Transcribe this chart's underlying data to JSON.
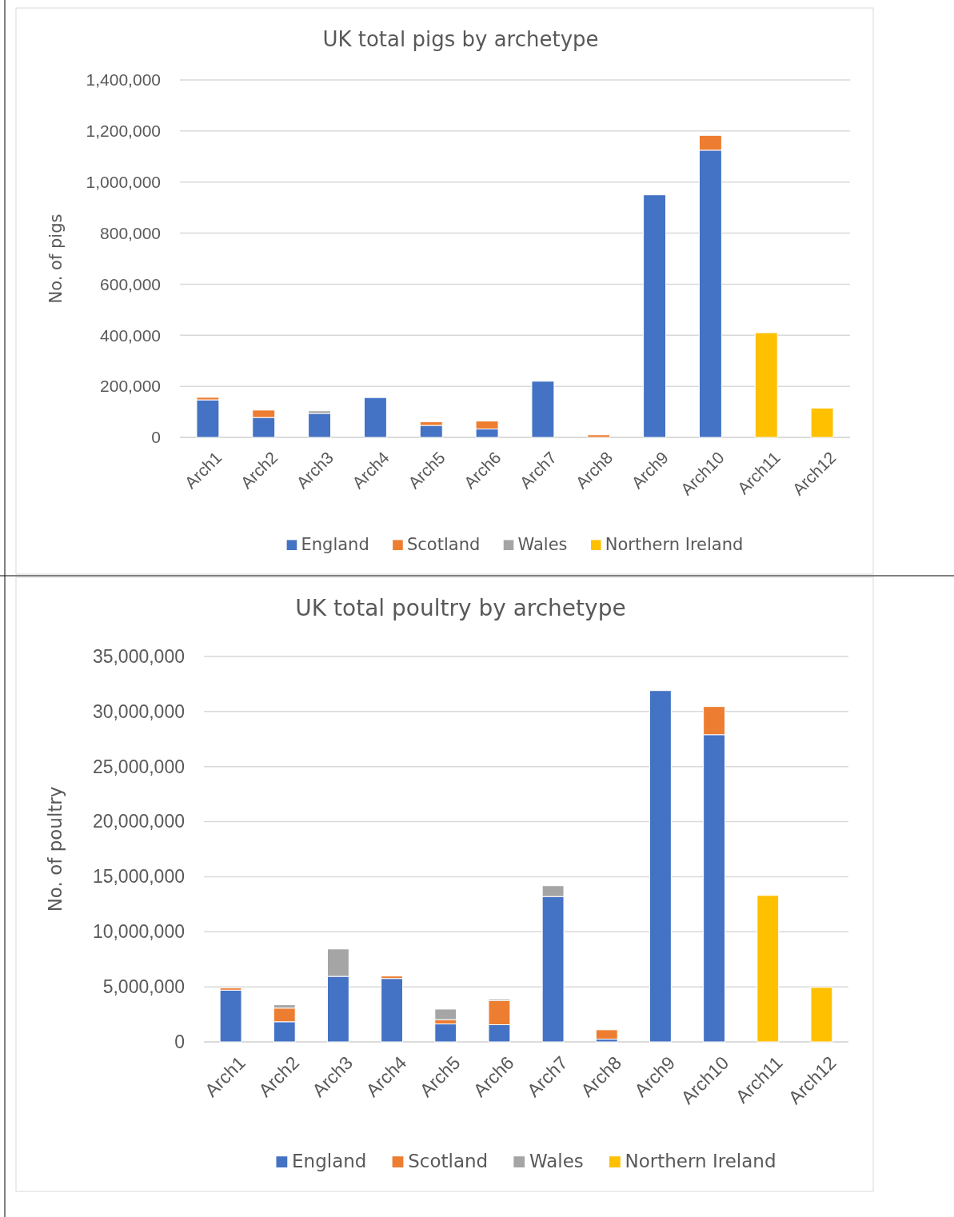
{
  "chart_data": [
    {
      "type": "bar",
      "title": "UK total pigs by archetype",
      "ylabel": "No. of pigs",
      "stacked": true,
      "grid": "y",
      "legend": "bottom",
      "categories": [
        "Arch1",
        "Arch2",
        "Arch3",
        "Arch4",
        "Arch5",
        "Arch6",
        "Arch7",
        "Arch8",
        "Arch9",
        "Arch10",
        "Arch11",
        "Arch12"
      ],
      "ylim": [
        0,
        1400000
      ],
      "yticks": [
        {
          "value": 0,
          "label": "0"
        },
        {
          "value": 200000,
          "label": "200,000"
        },
        {
          "value": 400000,
          "label": "400,000"
        },
        {
          "value": 600000,
          "label": "600,000"
        },
        {
          "value": 800000,
          "label": "800,000"
        },
        {
          "value": 1000000,
          "label": "1,000,000"
        },
        {
          "value": 1200000,
          "label": "1,200,000"
        },
        {
          "value": 1400000,
          "label": "1,400,000"
        }
      ],
      "series": [
        {
          "name": "England",
          "color": "#4472c4",
          "values": [
            147000,
            78000,
            94000,
            156000,
            47000,
            33000,
            220000,
            null,
            950000,
            1125000,
            null,
            null
          ]
        },
        {
          "name": "Scotland",
          "color": "#ed7d31",
          "values": [
            10000,
            29000,
            null,
            null,
            14000,
            31000,
            null,
            10000,
            null,
            58000,
            null,
            null
          ]
        },
        {
          "name": "Wales",
          "color": "#a5a5a5",
          "values": [
            null,
            null,
            10000,
            null,
            null,
            null,
            null,
            null,
            null,
            null,
            null,
            null
          ]
        },
        {
          "name": "Northern Ireland",
          "color": "#ffc000",
          "values": [
            null,
            null,
            null,
            null,
            null,
            null,
            null,
            null,
            null,
            null,
            410000,
            115000
          ]
        }
      ]
    },
    {
      "type": "bar",
      "title": "UK total poultry by archetype",
      "ylabel": "No. of poultry",
      "stacked": true,
      "grid": "y",
      "legend": "bottom",
      "categories": [
        "Arch1",
        "Arch2",
        "Arch3",
        "Arch4",
        "Arch5",
        "Arch6",
        "Arch7",
        "Arch8",
        "Arch9",
        "Arch10",
        "Arch11",
        "Arch12"
      ],
      "ylim": [
        0,
        35000000
      ],
      "yticks": [
        {
          "value": 0,
          "label": "0"
        },
        {
          "value": 5000000,
          "label": "5,000,000"
        },
        {
          "value": 10000000,
          "label": "10,000,000"
        },
        {
          "value": 15000000,
          "label": "15,000,000"
        },
        {
          "value": 20000000,
          "label": "20,000,000"
        },
        {
          "value": 25000000,
          "label": "25,000,000"
        },
        {
          "value": 30000000,
          "label": "30,000,000"
        },
        {
          "value": 35000000,
          "label": "35,000,000"
        }
      ],
      "series": [
        {
          "name": "England",
          "color": "#4472c4",
          "values": [
            4700000,
            1830000,
            5950000,
            5760000,
            1630000,
            1560000,
            13200000,
            250000,
            31900000,
            27900000,
            null,
            null
          ]
        },
        {
          "name": "Scotland",
          "color": "#ed7d31",
          "values": [
            200000,
            1240000,
            null,
            220000,
            390000,
            2200000,
            null,
            850000,
            null,
            2550000,
            null,
            null
          ]
        },
        {
          "name": "Wales",
          "color": "#a5a5a5",
          "values": [
            null,
            300000,
            2490000,
            null,
            960000,
            140000,
            980000,
            null,
            null,
            null,
            null,
            null
          ]
        },
        {
          "name": "Northern Ireland",
          "color": "#ffc000",
          "values": [
            null,
            null,
            null,
            null,
            null,
            null,
            null,
            null,
            null,
            null,
            13300000,
            4950000
          ]
        }
      ]
    }
  ]
}
